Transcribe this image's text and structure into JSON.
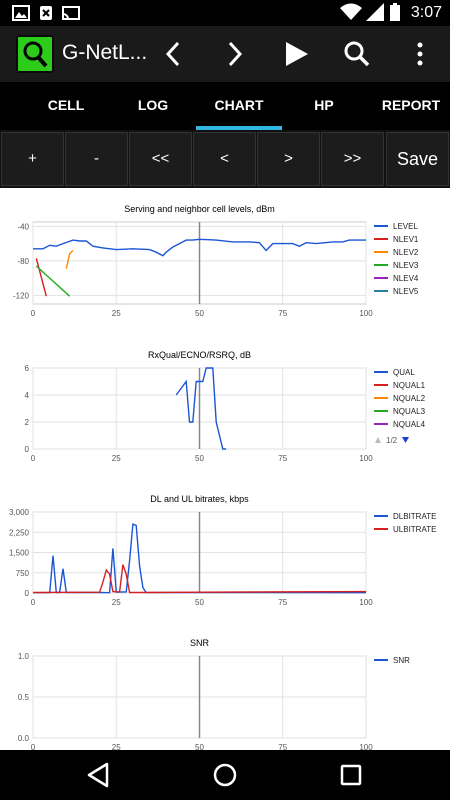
{
  "status_bar": {
    "time": "3:07",
    "icons": [
      "image-icon",
      "no-sim-icon",
      "cast-icon",
      "wifi-icon",
      "signal-icon",
      "battery-icon"
    ]
  },
  "app_bar": {
    "title": "G-NetL...",
    "icons": [
      "app-logo-icon",
      "chevron-left-icon",
      "chevron-right-icon",
      "play-icon",
      "search-icon",
      "overflow-menu-icon"
    ]
  },
  "tabs": [
    {
      "label": "CELL",
      "selected": false
    },
    {
      "label": "LOG",
      "selected": false
    },
    {
      "label": "CHART",
      "selected": true
    },
    {
      "label": "HP",
      "selected": false
    },
    {
      "label": "REPORT",
      "selected": false
    }
  ],
  "nav_buttons": {
    "plus": "+",
    "minus": "-",
    "first": "<<",
    "prev": "<",
    "next": ">",
    "last": ">>",
    "save": "Save"
  },
  "accent_color": "#33b5e5",
  "chart_data": [
    {
      "type": "line",
      "title": "Serving and neighbor cell levels, dBm",
      "xlim": [
        0,
        100
      ],
      "ylim": [
        -130,
        -35
      ],
      "xticks": [
        "0",
        "25",
        "50",
        "75",
        "100"
      ],
      "yticks": [
        {
          "v": -40,
          "label": "-40"
        },
        {
          "v": -80,
          "label": "-80"
        },
        {
          "v": -120,
          "label": "-120"
        }
      ],
      "cursor_x": 50,
      "legend_position": "right",
      "series": [
        {
          "name": "LEVEL",
          "color": "#1a56d6",
          "points": [
            [
              0,
              -66
            ],
            [
              3,
              -66
            ],
            [
              5,
              -62
            ],
            [
              7,
              -63
            ],
            [
              9,
              -60
            ],
            [
              12,
              -56
            ],
            [
              14,
              -57
            ],
            [
              16,
              -57
            ],
            [
              18,
              -63
            ],
            [
              21,
              -65
            ],
            [
              25,
              -67
            ],
            [
              30,
              -66
            ],
            [
              35,
              -67
            ],
            [
              37,
              -70
            ],
            [
              39,
              -74
            ],
            [
              40,
              -70
            ],
            [
              42,
              -64
            ],
            [
              44,
              -60
            ],
            [
              46,
              -56
            ],
            [
              48,
              -56
            ],
            [
              50,
              -55
            ],
            [
              55,
              -56
            ],
            [
              60,
              -58
            ],
            [
              65,
              -58
            ],
            [
              68,
              -59
            ],
            [
              70,
              -68
            ],
            [
              72,
              -60
            ],
            [
              75,
              -60
            ],
            [
              78,
              -60
            ],
            [
              80,
              -63
            ],
            [
              82,
              -59
            ],
            [
              85,
              -60
            ],
            [
              90,
              -58
            ],
            [
              93,
              -58
            ],
            [
              95,
              -56
            ],
            [
              100,
              -56
            ]
          ]
        },
        {
          "name": "NLEV1",
          "color": "#d62020",
          "points": [
            [
              1,
              -77
            ],
            [
              4,
              -121
            ]
          ]
        },
        {
          "name": "NLEV2",
          "color": "#ff8800",
          "points": [
            [
              10,
              -89
            ],
            [
              11,
              -72
            ],
            [
              12,
              -68
            ]
          ]
        },
        {
          "name": "NLEV3",
          "color": "#22aa22",
          "points": [
            [
              1,
              -86
            ],
            [
              11,
              -121
            ]
          ]
        },
        {
          "name": "NLEV4",
          "color": "#9922bb",
          "points": []
        },
        {
          "name": "NLEV5",
          "color": "#2a7fa0",
          "points": []
        }
      ]
    },
    {
      "type": "line",
      "title": "RxQual/ECNO/RSRQ, dB",
      "xlim": [
        0,
        100
      ],
      "ylim": [
        0,
        6
      ],
      "xticks": [
        "0",
        "25",
        "50",
        "75",
        "100"
      ],
      "yticks": [
        {
          "v": 0,
          "label": "0"
        },
        {
          "v": 2,
          "label": "2"
        },
        {
          "v": 4,
          "label": "4"
        },
        {
          "v": 6,
          "label": "6"
        }
      ],
      "cursor_x": 50,
      "legend_position": "right",
      "legend_page": "1/2",
      "series": [
        {
          "name": "QUAL",
          "color": "#1a56d6",
          "points": [
            [
              43,
              4
            ],
            [
              46,
              5
            ],
            [
              47,
              2
            ],
            [
              48,
              2
            ],
            [
              49,
              5
            ],
            [
              51,
              5
            ],
            [
              52,
              6
            ],
            [
              54,
              6
            ],
            [
              55,
              2
            ],
            [
              56,
              1
            ],
            [
              57,
              0
            ],
            [
              58,
              0
            ]
          ]
        },
        {
          "name": "NQUAL1",
          "color": "#d62020",
          "points": []
        },
        {
          "name": "NQUAL2",
          "color": "#ff8800",
          "points": []
        },
        {
          "name": "NQUAL3",
          "color": "#22aa22",
          "points": []
        },
        {
          "name": "NQUAL4",
          "color": "#9922bb",
          "points": []
        }
      ]
    },
    {
      "type": "line",
      "title": "DL and UL bitrates, kbps",
      "xlim": [
        0,
        100
      ],
      "ylim": [
        0,
        3000
      ],
      "xticks": [
        "0",
        "25",
        "50",
        "75",
        "100"
      ],
      "yticks": [
        {
          "v": 0,
          "label": "0"
        },
        {
          "v": 750,
          "label": "750"
        },
        {
          "v": 1500,
          "label": "1,500"
        },
        {
          "v": 2250,
          "label": "2,250"
        },
        {
          "v": 3000,
          "label": "3,000"
        }
      ],
      "cursor_x": 50,
      "legend_position": "right",
      "series": [
        {
          "name": "DLBITRATE",
          "color": "#1a56d6",
          "points": [
            [
              0,
              10
            ],
            [
              5,
              10
            ],
            [
              6,
              1380
            ],
            [
              7,
              20
            ],
            [
              8,
              20
            ],
            [
              9,
              900
            ],
            [
              10,
              20
            ],
            [
              20,
              20
            ],
            [
              23,
              10
            ],
            [
              24,
              1650
            ],
            [
              25,
              30
            ],
            [
              27,
              40
            ],
            [
              28,
              40
            ],
            [
              29,
              1200
            ],
            [
              30,
              2550
            ],
            [
              31,
              2500
            ],
            [
              32,
              1000
            ],
            [
              33,
              200
            ],
            [
              34,
              20
            ],
            [
              100,
              10
            ]
          ]
        },
        {
          "name": "ULBITRATE",
          "color": "#d62020",
          "points": [
            [
              0,
              20
            ],
            [
              20,
              30
            ],
            [
              21,
              400
            ],
            [
              22,
              850
            ],
            [
              23,
              700
            ],
            [
              24,
              50
            ],
            [
              26,
              40
            ],
            [
              27,
              1050
            ],
            [
              28,
              700
            ],
            [
              29,
              20
            ],
            [
              32,
              20
            ],
            [
              50,
              30
            ],
            [
              100,
              50
            ]
          ]
        }
      ]
    },
    {
      "type": "line",
      "title": "SNR",
      "xlim": [
        0,
        100
      ],
      "ylim": [
        0,
        1
      ],
      "xticks": [
        "0",
        "25",
        "50",
        "75",
        "100"
      ],
      "yticks": [
        {
          "v": 0,
          "label": "0.0"
        },
        {
          "v": 0.5,
          "label": "0.5"
        },
        {
          "v": 1,
          "label": "1.0"
        }
      ],
      "cursor_x": 50,
      "legend_position": "right",
      "series": [
        {
          "name": "SNR",
          "color": "#1a56d6",
          "points": []
        }
      ]
    }
  ]
}
